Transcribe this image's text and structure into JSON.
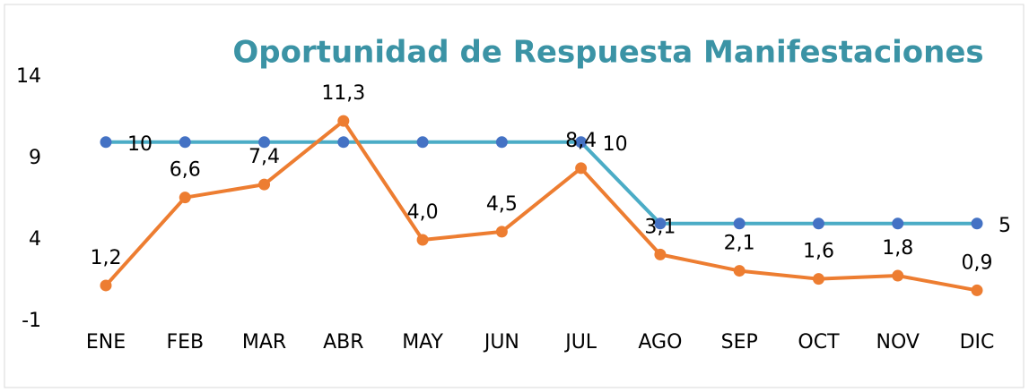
{
  "chart_data": {
    "type": "line",
    "title": "Oportunidad de Respuesta Manifestaciones",
    "categories": [
      "ENE",
      "FEB",
      "MAR",
      "ABR",
      "MAY",
      "JUN",
      "JUL",
      "AGO",
      "SEP",
      "OCT",
      "NOV",
      "DIC"
    ],
    "series": [
      {
        "color": "#4bacc6",
        "marker_color": "#4472c4",
        "values": [
          10,
          10,
          10,
          10,
          10,
          10,
          10,
          5,
          5,
          5,
          5,
          5
        ],
        "value_labels": [
          "10",
          null,
          null,
          null,
          null,
          null,
          "10",
          null,
          null,
          null,
          null,
          "5"
        ]
      },
      {
        "color": "#ed7d31",
        "values": [
          1.2,
          6.6,
          7.4,
          11.3,
          4.0,
          4.5,
          8.4,
          3.1,
          2.1,
          1.6,
          1.8,
          0.9
        ],
        "value_labels": [
          "1,2",
          "6,6",
          "7,4",
          "11,3",
          "4,0",
          "4,5",
          "8,4",
          "3,1",
          "2,1",
          "1,6",
          "1,8",
          "0,9"
        ]
      }
    ],
    "ylim": [
      -1,
      14
    ],
    "yticks": [
      14,
      9,
      4,
      -1
    ],
    "grid": false
  }
}
